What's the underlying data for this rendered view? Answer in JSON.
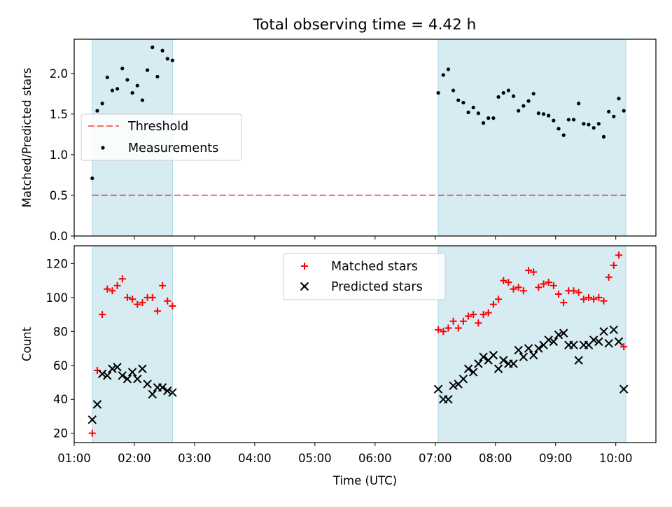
{
  "title": "Total observing time = 4.42 h",
  "colors": {
    "band": "#add8e6",
    "threshold": "#ff0000",
    "matched": "#ff0000",
    "predicted": "#000000",
    "measurements": "#000000"
  },
  "chart_data": [
    {
      "type": "scatter",
      "name": "ratio-panel",
      "ylabel": "Matched/Predicted stars",
      "xlim": [
        "01:00",
        "10:40"
      ],
      "ylim": [
        0,
        2.42
      ],
      "yticks": [
        "0.0",
        "0.5",
        "1.0",
        "1.5",
        "2.0"
      ],
      "yticks_values": [
        0,
        0.5,
        1.0,
        1.5,
        2.0
      ],
      "shaded_intervals": [
        [
          "01:18",
          "02:38"
        ],
        [
          "07:03",
          "10:10"
        ]
      ],
      "threshold": {
        "label": "Threshold",
        "value": 0.5,
        "x": [
          "01:18",
          "10:10"
        ],
        "style": "dashed"
      },
      "legend": {
        "placement": "center-left",
        "entries": [
          "Threshold",
          "Measurements"
        ]
      },
      "series": [
        {
          "name": "Measurements",
          "marker": "dot",
          "x": [
            "01:18",
            "01:23",
            "01:28",
            "01:33",
            "01:38",
            "01:43",
            "01:48",
            "01:53",
            "01:58",
            "02:03",
            "02:08",
            "02:13",
            "02:18",
            "02:23",
            "02:28",
            "02:33",
            "02:38",
            "07:03",
            "07:08",
            "07:13",
            "07:18",
            "07:23",
            "07:28",
            "07:33",
            "07:38",
            "07:43",
            "07:48",
            "07:53",
            "07:58",
            "08:03",
            "08:08",
            "08:13",
            "08:18",
            "08:23",
            "08:28",
            "08:33",
            "08:38",
            "08:43",
            "08:48",
            "08:53",
            "08:58",
            "09:03",
            "09:08",
            "09:13",
            "09:18",
            "09:23",
            "09:28",
            "09:33",
            "09:38",
            "09:43",
            "09:48",
            "09:53",
            "09:58",
            "10:03",
            "10:08"
          ],
          "y": [
            0.71,
            1.54,
            1.63,
            1.95,
            1.79,
            1.81,
            2.06,
            1.92,
            1.76,
            1.85,
            1.67,
            2.04,
            2.32,
            1.96,
            2.28,
            2.18,
            2.16,
            1.76,
            1.98,
            2.05,
            1.79,
            1.67,
            1.64,
            1.52,
            1.58,
            1.51,
            1.39,
            1.45,
            1.45,
            1.71,
            1.76,
            1.79,
            1.72,
            1.54,
            1.6,
            1.66,
            1.75,
            1.51,
            1.5,
            1.48,
            1.42,
            1.32,
            1.24,
            1.43,
            1.43,
            1.63,
            1.38,
            1.37,
            1.33,
            1.38,
            1.22,
            1.53,
            1.47,
            1.69,
            1.54
          ]
        }
      ]
    },
    {
      "type": "scatter",
      "name": "count-panel",
      "xlabel": "Time (UTC)",
      "ylabel": "Count",
      "xlim": [
        "01:00",
        "10:40"
      ],
      "ylim": [
        14.5,
        130.5
      ],
      "xticks": [
        "01:00",
        "02:00",
        "03:00",
        "04:00",
        "05:00",
        "06:00",
        "07:00",
        "08:00",
        "09:00",
        "10:00"
      ],
      "yticks": [
        "20",
        "40",
        "60",
        "80",
        "100",
        "120"
      ],
      "yticks_values": [
        20,
        40,
        60,
        80,
        100,
        120
      ],
      "shaded_intervals": [
        [
          "01:18",
          "02:38"
        ],
        [
          "07:03",
          "10:10"
        ]
      ],
      "legend": {
        "placement": "top-center",
        "entries": [
          "Matched stars",
          "Predicted stars"
        ]
      },
      "series": [
        {
          "name": "Matched stars",
          "marker": "plus",
          "x": [
            "01:18",
            "01:23",
            "01:28",
            "01:33",
            "01:38",
            "01:43",
            "01:48",
            "01:53",
            "01:58",
            "02:03",
            "02:08",
            "02:13",
            "02:18",
            "02:23",
            "02:28",
            "02:33",
            "02:38",
            "07:03",
            "07:08",
            "07:13",
            "07:18",
            "07:23",
            "07:28",
            "07:33",
            "07:38",
            "07:43",
            "07:48",
            "07:53",
            "07:58",
            "08:03",
            "08:08",
            "08:13",
            "08:18",
            "08:23",
            "08:28",
            "08:33",
            "08:38",
            "08:43",
            "08:48",
            "08:53",
            "08:58",
            "09:03",
            "09:08",
            "09:13",
            "09:18",
            "09:23",
            "09:28",
            "09:33",
            "09:38",
            "09:43",
            "09:48",
            "09:53",
            "09:58",
            "10:03",
            "10:08"
          ],
          "y": [
            20,
            57,
            90,
            105,
            104,
            107,
            111,
            100,
            99,
            96,
            97,
            100,
            100,
            92,
            107,
            98,
            95,
            81,
            80,
            82,
            86,
            82,
            86,
            89,
            90,
            85,
            90,
            91,
            96,
            99,
            110,
            109,
            105,
            106,
            104,
            116,
            115,
            106,
            108,
            109,
            107,
            102,
            97,
            104,
            104,
            103,
            99,
            100,
            99,
            100,
            98,
            112,
            119,
            125,
            71
          ]
        },
        {
          "name": "Predicted stars",
          "marker": "x",
          "x": [
            "01:18",
            "01:23",
            "01:28",
            "01:33",
            "01:38",
            "01:43",
            "01:48",
            "01:53",
            "01:58",
            "02:03",
            "02:08",
            "02:13",
            "02:18",
            "02:23",
            "02:28",
            "02:33",
            "02:38",
            "07:03",
            "07:08",
            "07:13",
            "07:18",
            "07:23",
            "07:28",
            "07:33",
            "07:38",
            "07:43",
            "07:48",
            "07:53",
            "07:58",
            "08:03",
            "08:08",
            "08:13",
            "08:18",
            "08:23",
            "08:28",
            "08:33",
            "08:38",
            "08:43",
            "08:48",
            "08:53",
            "08:58",
            "09:03",
            "09:08",
            "09:13",
            "09:18",
            "09:23",
            "09:28",
            "09:33",
            "09:38",
            "09:43",
            "09:48",
            "09:53",
            "09:58",
            "10:03",
            "10:08"
          ],
          "y": [
            28,
            37,
            55,
            54,
            58,
            59,
            54,
            52,
            56,
            52,
            58,
            49,
            43,
            47,
            47,
            45,
            44,
            46,
            40,
            40,
            48,
            49,
            52,
            58,
            56,
            61,
            65,
            63,
            66,
            58,
            63,
            61,
            61,
            69,
            65,
            70,
            66,
            70,
            72,
            75,
            74,
            78,
            79,
            72,
            72,
            63,
            72,
            72,
            75,
            74,
            80,
            73,
            81,
            74,
            46
          ]
        }
      ]
    }
  ]
}
